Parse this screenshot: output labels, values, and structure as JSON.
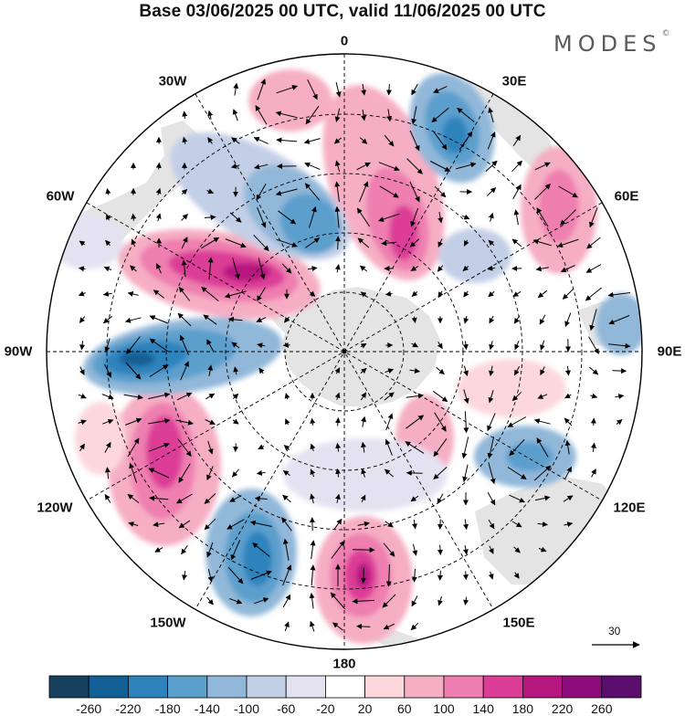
{
  "title": "Base 03/06/2025 00 UTC, valid 11/06/2025 00 UTC",
  "brand": "MODES",
  "brand_mark": "©",
  "longitude_labels": [
    "0",
    "30E",
    "60E",
    "90E",
    "120E",
    "150E",
    "180",
    "150W",
    "120W",
    "90W",
    "60W",
    "30W"
  ],
  "vector_scale_label": "30",
  "colorbar": {
    "labels": [
      "-260",
      "-220",
      "-180",
      "-140",
      "-100",
      "-60",
      "-20",
      "20",
      "60",
      "100",
      "140",
      "180",
      "220",
      "260"
    ],
    "colors": [
      "#17405e",
      "#125f95",
      "#2f83bd",
      "#5b9fcd",
      "#92b8d9",
      "#c3cfe6",
      "#e4e2f1",
      "#ffffff",
      "#fcd8dd",
      "#f6aec4",
      "#ee7fb0",
      "#dc3e97",
      "#b5177f",
      "#8b0c7a",
      "#5a0e6e"
    ]
  },
  "colors": {
    "land": "#e4e4e4",
    "projection": "south polar stereographic"
  }
}
